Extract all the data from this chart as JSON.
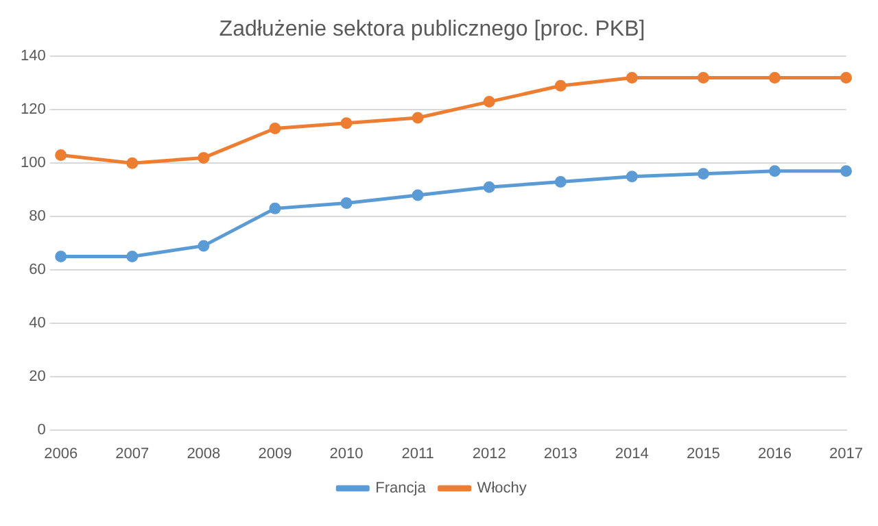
{
  "chart_data": {
    "type": "line",
    "title": "Zadłużenie sektora publicznego [proc. PKB]",
    "categories": [
      "2006",
      "2007",
      "2008",
      "2009",
      "2010",
      "2011",
      "2012",
      "2013",
      "2014",
      "2015",
      "2016",
      "2017"
    ],
    "series": [
      {
        "name": "Francja",
        "color": "#5b9bd5",
        "values": [
          65,
          65,
          69,
          83,
          85,
          88,
          91,
          93,
          95,
          96,
          97,
          97
        ]
      },
      {
        "name": "Włochy",
        "color": "#ed7d31",
        "values": [
          103,
          100,
          102,
          113,
          115,
          117,
          123,
          129,
          132,
          132,
          132,
          132
        ]
      }
    ],
    "ylim": [
      0,
      140
    ],
    "yticks": [
      0,
      20,
      40,
      60,
      80,
      100,
      120,
      140
    ],
    "grid": "y",
    "legend": "bottom",
    "marker": "circle",
    "line_style": "solid"
  }
}
